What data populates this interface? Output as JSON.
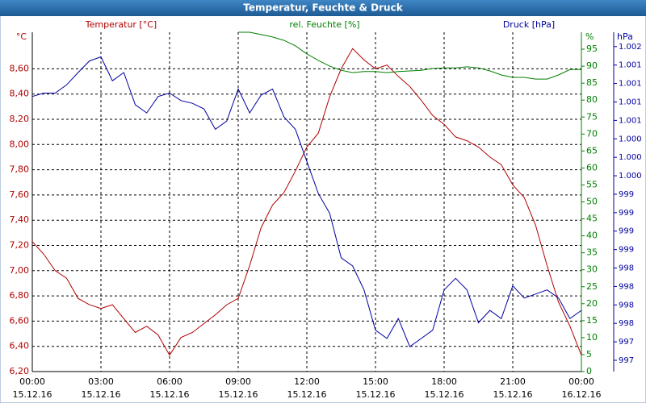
{
  "chart_data": {
    "type": "line",
    "title": "Temperatur, Feuchte & Druck",
    "ylabel": "°C",
    "y2label": "%",
    "y3label": "hPa",
    "x": [
      0,
      0.5,
      1,
      1.5,
      2,
      2.5,
      3,
      3.5,
      4,
      4.5,
      5,
      5.5,
      6,
      6.5,
      7,
      7.5,
      8,
      8.5,
      9,
      9.5,
      10,
      10.5,
      11,
      11.5,
      12,
      12.5,
      13,
      13.5,
      14,
      14.5,
      15,
      15.5,
      16,
      16.5,
      17,
      17.5,
      18,
      18.5,
      19,
      19.5,
      20,
      20.5,
      21,
      21.5,
      22,
      22.5,
      23,
      23.5,
      24
    ],
    "xlim": [
      0,
      24
    ],
    "xticks": [
      {
        "value": 0,
        "label": "00:00"
      },
      {
        "value": 3,
        "label": "03:00"
      },
      {
        "value": 6,
        "label": "06:00"
      },
      {
        "value": 9,
        "label": "09:00"
      },
      {
        "value": 12,
        "label": "12:00"
      },
      {
        "value": 15,
        "label": "15:00"
      },
      {
        "value": 18,
        "label": "18:00"
      },
      {
        "value": 21,
        "label": "21:00"
      },
      {
        "value": 24,
        "label": "00:00"
      }
    ],
    "xtick_dates": [
      "15.12.16",
      "15.12.16",
      "15.12.16",
      "15.12.16",
      "15.12.16",
      "15.12.16",
      "15.12.16",
      "15.12.16",
      "16.12.16"
    ],
    "ylim": [
      6.2,
      8.89
    ],
    "yticks": [
      {
        "value": 6.2,
        "label": "6,20"
      },
      {
        "value": 6.4,
        "label": "6,40"
      },
      {
        "value": 6.6,
        "label": "6,60"
      },
      {
        "value": 6.8,
        "label": "6,80"
      },
      {
        "value": 7.0,
        "label": "7,00"
      },
      {
        "value": 7.2,
        "label": "7,20"
      },
      {
        "value": 7.4,
        "label": "7,40"
      },
      {
        "value": 7.6,
        "label": "7,60"
      },
      {
        "value": 7.8,
        "label": "7,80"
      },
      {
        "value": 8.0,
        "label": "8,00"
      },
      {
        "value": 8.2,
        "label": "8,20"
      },
      {
        "value": 8.4,
        "label": "8,40"
      },
      {
        "value": 8.6,
        "label": "8,60"
      }
    ],
    "y2lim": [
      0,
      100
    ],
    "y2ticks": [
      0,
      5,
      10,
      15,
      20,
      25,
      30,
      35,
      40,
      45,
      50,
      55,
      60,
      65,
      70,
      75,
      80,
      85,
      90,
      95
    ],
    "y3lim": [
      996.835,
      1001.8
    ],
    "y3ticks": [
      {
        "value": 997.0,
        "label": "997"
      },
      {
        "value": 997.27,
        "label": "997"
      },
      {
        "value": 997.54,
        "label": "998"
      },
      {
        "value": 997.81,
        "label": "998"
      },
      {
        "value": 998.08,
        "label": "998"
      },
      {
        "value": 998.35,
        "label": "998"
      },
      {
        "value": 998.62,
        "label": "999"
      },
      {
        "value": 998.89,
        "label": "999"
      },
      {
        "value": 999.16,
        "label": "999"
      },
      {
        "value": 999.43,
        "label": "999"
      },
      {
        "value": 999.7,
        "label": "1.000"
      },
      {
        "value": 999.97,
        "label": "1.000"
      },
      {
        "value": 1000.24,
        "label": "1.000"
      },
      {
        "value": 1000.51,
        "label": "1.001"
      },
      {
        "value": 1000.78,
        "label": "1.001"
      },
      {
        "value": 1001.05,
        "label": "1.001"
      },
      {
        "value": 1001.32,
        "label": "1.001"
      },
      {
        "value": 1001.59,
        "label": "1.002"
      }
    ],
    "grid": true,
    "series": [
      {
        "name": "Temperatur [°C]",
        "color": "#b00000",
        "axis": "y",
        "values": [
          7.23,
          7.13,
          7.0,
          6.94,
          6.78,
          6.73,
          6.7,
          6.73,
          6.62,
          6.51,
          6.56,
          6.49,
          6.33,
          6.47,
          6.51,
          6.58,
          6.65,
          6.73,
          6.78,
          7.04,
          7.34,
          7.52,
          7.62,
          7.79,
          7.98,
          8.09,
          8.38,
          8.6,
          8.76,
          8.67,
          8.6,
          8.63,
          8.54,
          8.46,
          8.35,
          8.23,
          8.16,
          8.06,
          8.03,
          7.98,
          7.9,
          7.84,
          7.68,
          7.58,
          7.36,
          7.04,
          6.75,
          6.56,
          6.33
        ]
      },
      {
        "name": "rel. Feuchte [%]",
        "color": "#008000",
        "axis": "y2",
        "values": [
          null,
          null,
          null,
          null,
          null,
          null,
          null,
          null,
          null,
          null,
          null,
          null,
          null,
          null,
          null,
          null,
          null,
          null,
          100,
          100,
          99.3,
          98.6,
          97.6,
          96,
          93.6,
          91.7,
          90,
          88.8,
          88.1,
          88.4,
          88.4,
          88.1,
          88.4,
          88.6,
          88.8,
          89.3,
          89.5,
          89.5,
          89.8,
          89.5,
          88.6,
          87.4,
          86.7,
          86.7,
          86.2,
          86.2,
          87.4,
          89,
          89
        ]
      },
      {
        "name": "Druck [hPa]",
        "color": "#0000a0",
        "axis": "y3",
        "values": [
          1000.86,
          1000.91,
          1000.91,
          1001.03,
          1001.21,
          1001.38,
          1001.44,
          1001.09,
          1001.21,
          1000.74,
          1000.62,
          1000.86,
          1000.91,
          1000.8,
          1000.76,
          1000.68,
          1000.38,
          1000.5,
          1000.97,
          1000.62,
          1000.88,
          1000.97,
          1000.56,
          1000.38,
          999.91,
          999.44,
          999.15,
          998.5,
          998.38,
          998.03,
          997.44,
          997.32,
          997.61,
          997.2,
          997.32,
          997.44,
          998.03,
          998.2,
          998.03,
          997.55,
          997.73,
          997.61,
          998.09,
          997.91,
          997.97,
          998.03,
          997.91,
          997.61,
          997.73
        ]
      }
    ]
  }
}
